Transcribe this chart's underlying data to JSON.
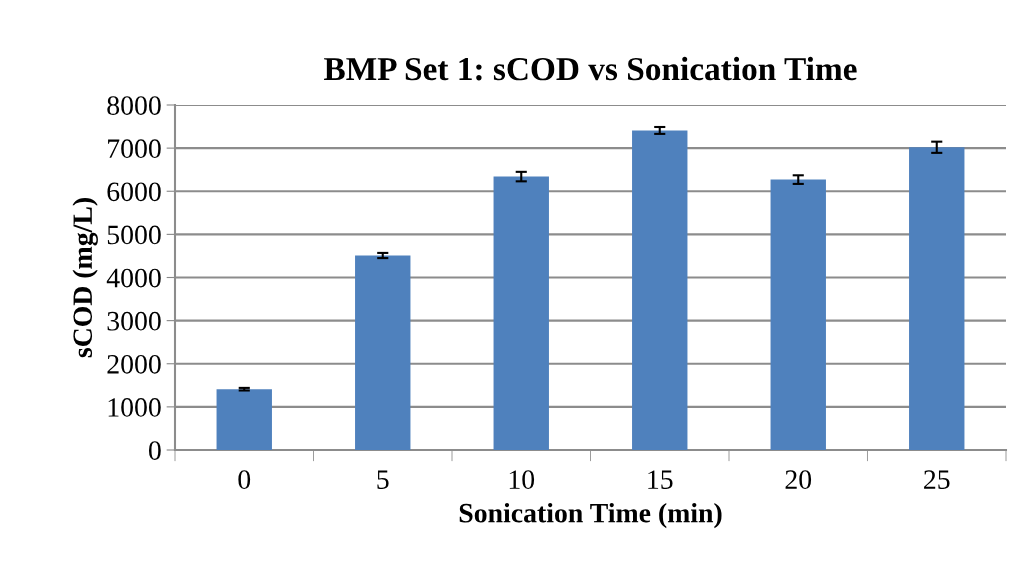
{
  "chart_data": {
    "type": "bar",
    "title": "BMP Set 1: sCOD vs Sonication Time",
    "xlabel": "Sonication Time (min)",
    "ylabel": "sCOD (mg/L)",
    "categories": [
      "0",
      "5",
      "10",
      "15",
      "20",
      "25"
    ],
    "values": [
      1410,
      4510,
      6340,
      7410,
      6270,
      7020
    ],
    "errors": [
      30,
      60,
      110,
      80,
      100,
      130
    ],
    "color": "#4f81bd",
    "ylim": [
      0,
      8000
    ],
    "yticks": [
      0,
      1000,
      2000,
      3000,
      4000,
      5000,
      6000,
      7000,
      8000
    ],
    "grid": "y",
    "legend": false
  }
}
